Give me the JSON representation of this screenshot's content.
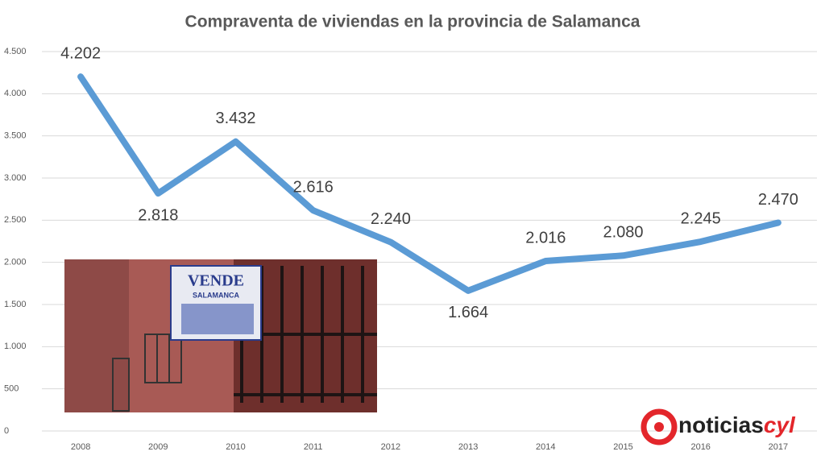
{
  "chart_data": {
    "type": "line",
    "title": "Compraventa de viviendas en la provincia de Salamanca",
    "categories": [
      "2008",
      "2009",
      "2010",
      "2011",
      "2012",
      "2013",
      "2014",
      "2015",
      "2016",
      "2017"
    ],
    "series": [
      {
        "name": "Compraventa de viviendas",
        "color": "#5b9bd5",
        "values": [
          4202,
          2818,
          3432,
          2616,
          2240,
          1664,
          2016,
          2080,
          2245,
          2470
        ],
        "value_labels": [
          "4.202",
          "2.818",
          "3.432",
          "2.616",
          "2.240",
          "1.664",
          "2.016",
          "2.080",
          "2.245",
          "2.470"
        ]
      }
    ],
    "ylim": [
      0,
      4500
    ],
    "yticks": [
      0,
      500,
      {
        "value": 1000,
        "label": "1.000"
      },
      {
        "value": 1500,
        "label": "1.500"
      },
      {
        "value": 2000,
        "label": "2.000"
      },
      {
        "value": 2500,
        "label": "2.500"
      },
      {
        "value": 3000,
        "label": "3.000"
      },
      {
        "value": 3500,
        "label": "3.500"
      },
      {
        "value": 4000,
        "label": "4.000"
      },
      {
        "value": 4500,
        "label": "4.500"
      }
    ],
    "grid": true
  },
  "image_texts": [
    "VENDE",
    "SALAMANCA"
  ],
  "watermark": {
    "text": "noticias",
    "accent": "cyl"
  }
}
